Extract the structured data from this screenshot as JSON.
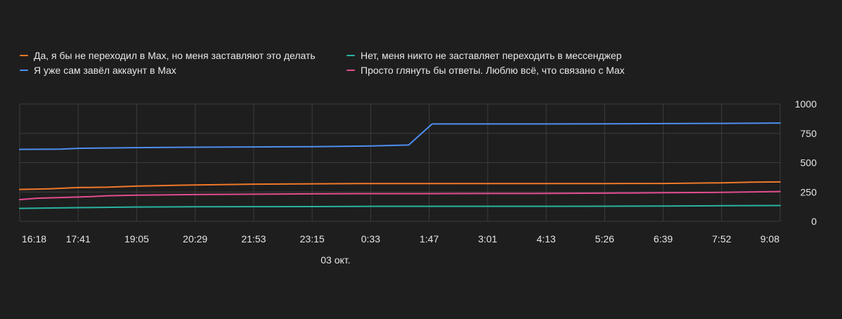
{
  "colors": {
    "orange": "#f0782a",
    "teal": "#2ab3a0",
    "blue": "#4e8ef0",
    "pink": "#e24c8f",
    "grid": "#3c3c3c",
    "background": "#1e1e1e"
  },
  "chart_data": {
    "type": "line",
    "x_tick_labels": [
      "16:18",
      "17:41",
      "19:05",
      "20:29",
      "21:53",
      "23:15",
      "0:33",
      "1:47",
      "3:01",
      "4:13",
      "5:26",
      "6:39",
      "7:52",
      "9:08"
    ],
    "x_sublabel": "03 окт.",
    "y_ticks": [
      0,
      250,
      500,
      750,
      1000
    ],
    "ylim": [
      0,
      1000
    ],
    "grid": true,
    "legend_position": "top-left",
    "series": [
      {
        "name": "Да, я бы не переходил в Max, но меня заставляют это делать",
        "color": "#f0782a",
        "points": [
          [
            0,
            272
          ],
          [
            0.5,
            277
          ],
          [
            1,
            288
          ],
          [
            1.5,
            291
          ],
          [
            2,
            300
          ],
          [
            3,
            310
          ],
          [
            4,
            317
          ],
          [
            5,
            320
          ],
          [
            6,
            322
          ],
          [
            7,
            322
          ],
          [
            8,
            322
          ],
          [
            9,
            322
          ],
          [
            10,
            322
          ],
          [
            11,
            323
          ],
          [
            12,
            328
          ],
          [
            12.5,
            334
          ],
          [
            13,
            336
          ]
        ]
      },
      {
        "name": "Нет, меня никто не заставляет переходить в мессенджер",
        "color": "#2ab3a0",
        "points": [
          [
            0,
            110
          ],
          [
            1,
            117
          ],
          [
            2,
            122
          ],
          [
            3,
            124
          ],
          [
            4,
            125
          ],
          [
            5,
            126
          ],
          [
            6,
            128
          ],
          [
            7,
            128
          ],
          [
            8,
            128
          ],
          [
            9,
            128
          ],
          [
            10,
            129
          ],
          [
            11,
            130
          ],
          [
            12,
            133
          ],
          [
            13,
            135
          ]
        ]
      },
      {
        "name": "Я уже сам завёл аккаунт в Max",
        "color": "#4e8ef0",
        "points": [
          [
            0,
            613
          ],
          [
            0.7,
            615
          ],
          [
            1,
            622
          ],
          [
            1.5,
            625
          ],
          [
            2,
            628
          ],
          [
            3,
            632
          ],
          [
            4,
            634
          ],
          [
            5,
            636
          ],
          [
            6,
            642
          ],
          [
            6.65,
            650
          ],
          [
            7.05,
            830
          ],
          [
            8,
            830
          ],
          [
            9,
            830
          ],
          [
            10,
            831
          ],
          [
            11,
            833
          ],
          [
            12,
            835
          ],
          [
            13,
            838
          ]
        ]
      },
      {
        "name": "Просто глянуть бы ответы. Люблю всё, что связано с Max",
        "color": "#e24c8f",
        "points": [
          [
            0,
            185
          ],
          [
            0.3,
            197
          ],
          [
            0.8,
            204
          ],
          [
            1.2,
            210
          ],
          [
            1.5,
            218
          ],
          [
            2,
            223
          ],
          [
            3,
            228
          ],
          [
            4,
            231
          ],
          [
            5,
            234
          ],
          [
            6,
            236
          ],
          [
            7,
            236
          ],
          [
            8,
            237
          ],
          [
            9,
            238
          ],
          [
            10,
            240
          ],
          [
            11,
            244
          ],
          [
            12,
            247
          ],
          [
            13,
            254
          ]
        ]
      }
    ]
  }
}
